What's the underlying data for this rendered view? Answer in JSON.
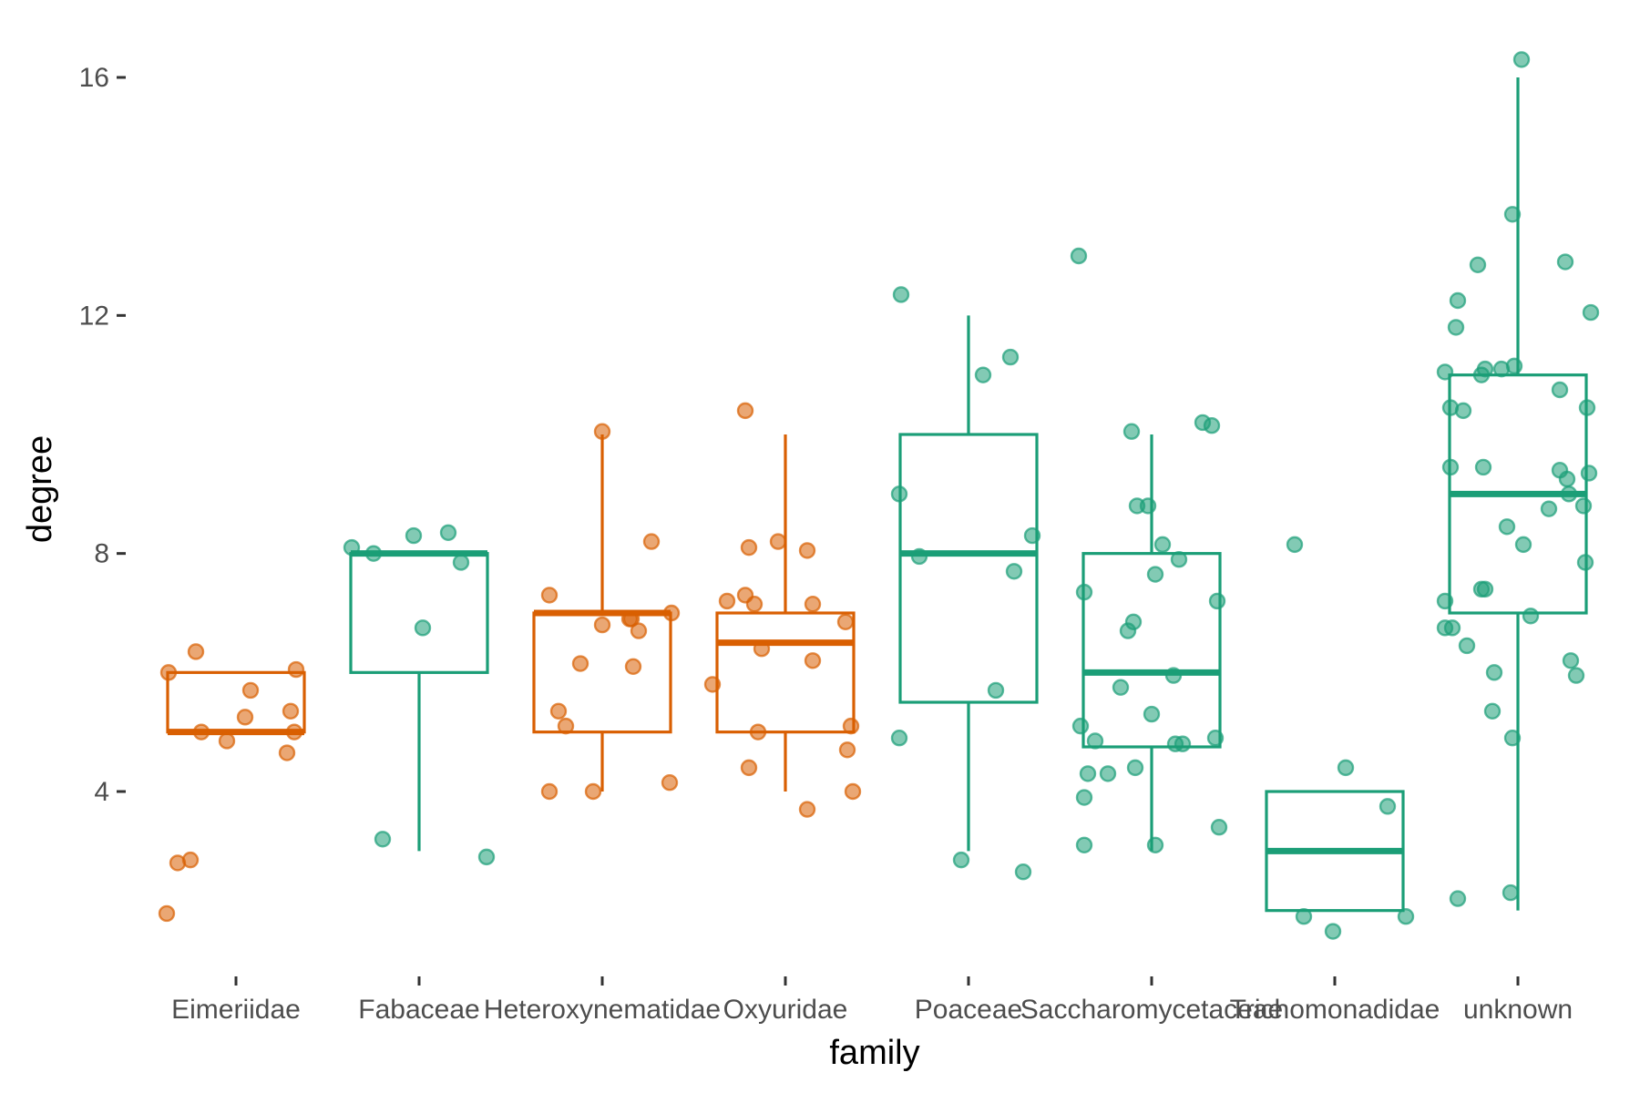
{
  "chart_data": {
    "type": "box",
    "xlabel": "family",
    "ylabel": "degree",
    "ylim": [
      1.0,
      16.5
    ],
    "yticks": [
      4,
      8,
      12,
      16
    ],
    "yticklabels": [
      "4",
      "8",
      "12",
      "16"
    ],
    "grid": false,
    "legend": "none",
    "colors": {
      "orange": "#D95F02",
      "green": "#1B9E77"
    },
    "categories": [
      "Eimeriidae",
      "Fabaceae",
      "Heteroxynematidae",
      "Oxyuridae",
      "Poaceae",
      "Saccharomycetaceae",
      "Trichomonadidae",
      "unknown"
    ],
    "boxes": [
      {
        "family": "Eimeriidae",
        "color": "orange",
        "q1": 5,
        "median": 5,
        "q3": 6,
        "whisker_low": 5,
        "whisker_high": 6,
        "points": [
          [
            -0.37,
            6.0
          ],
          [
            -0.32,
            2.8
          ],
          [
            -0.25,
            2.85
          ],
          [
            -0.22,
            6.35
          ],
          [
            -0.19,
            5.0
          ],
          [
            -0.05,
            4.85
          ],
          [
            0.05,
            5.25
          ],
          [
            0.08,
            5.7
          ],
          [
            0.28,
            4.65
          ],
          [
            0.3,
            5.35
          ],
          [
            0.32,
            5.0
          ],
          [
            0.33,
            6.05
          ],
          [
            -0.38,
            1.95
          ]
        ]
      },
      {
        "family": "Fabaceae",
        "color": "green",
        "q1": 6,
        "median": 8,
        "q3": 8,
        "whisker_low": 3,
        "whisker_high": 8,
        "points": [
          [
            -0.37,
            8.1
          ],
          [
            -0.25,
            8.0
          ],
          [
            -0.2,
            3.2
          ],
          [
            -0.03,
            8.3
          ],
          [
            0.02,
            6.75
          ],
          [
            0.16,
            8.35
          ],
          [
            0.23,
            7.85
          ],
          [
            0.37,
            2.9
          ]
        ]
      },
      {
        "family": "Heteroxynematidae",
        "color": "orange",
        "q1": 5,
        "median": 7,
        "q3": 7,
        "whisker_low": 4,
        "whisker_high": 10,
        "points": [
          [
            -0.29,
            4.0
          ],
          [
            -0.29,
            7.3
          ],
          [
            -0.24,
            5.35
          ],
          [
            -0.2,
            5.1
          ],
          [
            -0.12,
            6.15
          ],
          [
            -0.05,
            4.0
          ],
          [
            0.0,
            10.05
          ],
          [
            0.0,
            6.8
          ],
          [
            0.15,
            6.9
          ],
          [
            0.16,
            6.9
          ],
          [
            0.17,
            6.1
          ],
          [
            0.2,
            6.7
          ],
          [
            0.27,
            8.2
          ],
          [
            0.37,
            4.15
          ],
          [
            0.38,
            7.0
          ]
        ]
      },
      {
        "family": "Oxyuridae",
        "color": "orange",
        "q1": 5,
        "median": 6.5,
        "q3": 7,
        "whisker_low": 4,
        "whisker_high": 10,
        "points": [
          [
            -0.4,
            5.8
          ],
          [
            -0.32,
            7.2
          ],
          [
            -0.22,
            7.3
          ],
          [
            -0.2,
            8.1
          ],
          [
            -0.2,
            4.4
          ],
          [
            -0.17,
            7.15
          ],
          [
            -0.15,
            5.0
          ],
          [
            -0.13,
            6.4
          ],
          [
            -0.22,
            10.4
          ],
          [
            -0.04,
            8.2
          ],
          [
            0.12,
            3.7
          ],
          [
            0.12,
            8.05
          ],
          [
            0.15,
            6.2
          ],
          [
            0.15,
            7.15
          ],
          [
            0.33,
            6.85
          ],
          [
            0.34,
            4.7
          ],
          [
            0.36,
            5.1
          ],
          [
            0.37,
            4.0
          ]
        ]
      },
      {
        "family": "Poaceae",
        "color": "green",
        "q1": 5.5,
        "median": 8,
        "q3": 10,
        "whisker_low": 3,
        "whisker_high": 12,
        "points": [
          [
            -0.38,
            4.9
          ],
          [
            -0.38,
            9.0
          ],
          [
            -0.37,
            12.35
          ],
          [
            -0.27,
            7.95
          ],
          [
            -0.04,
            2.85
          ],
          [
            0.08,
            11.0
          ],
          [
            0.15,
            5.7
          ],
          [
            0.23,
            11.3
          ],
          [
            0.25,
            7.7
          ],
          [
            0.3,
            2.65
          ],
          [
            0.35,
            8.3
          ]
        ]
      },
      {
        "family": "Saccharomycetaceae",
        "color": "green",
        "q1": 4.75,
        "median": 6,
        "q3": 8,
        "whisker_low": 3,
        "whisker_high": 10,
        "points": [
          [
            -0.39,
            5.1
          ],
          [
            -0.37,
            3.1
          ],
          [
            -0.37,
            3.9
          ],
          [
            -0.37,
            7.35
          ],
          [
            -0.35,
            4.3
          ],
          [
            -0.31,
            4.85
          ],
          [
            -0.4,
            13.0
          ],
          [
            -0.24,
            4.3
          ],
          [
            -0.17,
            5.75
          ],
          [
            -0.13,
            6.7
          ],
          [
            -0.09,
            4.4
          ],
          [
            -0.1,
            6.85
          ],
          [
            -0.11,
            10.05
          ],
          [
            -0.08,
            8.8
          ],
          [
            -0.02,
            8.8
          ],
          [
            0.0,
            5.3
          ],
          [
            0.02,
            3.1
          ],
          [
            0.02,
            7.65
          ],
          [
            0.06,
            8.15
          ],
          [
            0.13,
            4.8
          ],
          [
            0.12,
            5.95
          ],
          [
            0.15,
            7.9
          ],
          [
            0.17,
            4.8
          ],
          [
            0.28,
            10.2
          ],
          [
            0.33,
            10.15
          ],
          [
            0.35,
            4.9
          ],
          [
            0.36,
            7.2
          ],
          [
            0.37,
            3.4
          ]
        ]
      },
      {
        "family": "Trichomonadidae",
        "color": "green",
        "q1": 2,
        "median": 3,
        "q3": 4,
        "whisker_low": 2,
        "whisker_high": 4,
        "points": [
          [
            -0.22,
            8.15
          ],
          [
            -0.17,
            1.9
          ],
          [
            -0.01,
            1.65
          ],
          [
            0.06,
            4.4
          ],
          [
            0.29,
            3.75
          ],
          [
            0.39,
            1.9
          ]
        ]
      },
      {
        "family": "unknown",
        "color": "green",
        "q1": 7,
        "median": 9,
        "q3": 11,
        "whisker_low": 2,
        "whisker_high": 16,
        "points": [
          [
            -0.4,
            7.2
          ],
          [
            -0.4,
            6.75
          ],
          [
            -0.4,
            11.05
          ],
          [
            -0.37,
            9.45
          ],
          [
            -0.37,
            10.45
          ],
          [
            -0.36,
            6.75
          ],
          [
            -0.34,
            11.8
          ],
          [
            -0.33,
            12.25
          ],
          [
            -0.33,
            2.2
          ],
          [
            -0.3,
            10.4
          ],
          [
            -0.28,
            6.45
          ],
          [
            -0.22,
            12.85
          ],
          [
            -0.2,
            7.4
          ],
          [
            -0.2,
            11.0
          ],
          [
            -0.19,
            9.45
          ],
          [
            -0.18,
            7.4
          ],
          [
            -0.18,
            11.1
          ],
          [
            -0.14,
            5.35
          ],
          [
            -0.13,
            6.0
          ],
          [
            -0.09,
            11.1
          ],
          [
            -0.06,
            8.45
          ],
          [
            -0.04,
            2.3
          ],
          [
            -0.03,
            4.9
          ],
          [
            -0.03,
            13.7
          ],
          [
            -0.02,
            11.15
          ],
          [
            0.03,
            8.15
          ],
          [
            0.02,
            16.3
          ],
          [
            0.07,
            6.95
          ],
          [
            0.17,
            8.75
          ],
          [
            0.23,
            10.75
          ],
          [
            0.26,
            12.9
          ],
          [
            0.23,
            9.4
          ],
          [
            0.27,
            9.25
          ],
          [
            0.28,
            9.0
          ],
          [
            0.29,
            6.2
          ],
          [
            0.32,
            5.95
          ],
          [
            0.36,
            8.8
          ],
          [
            0.37,
            7.85
          ],
          [
            0.38,
            10.45
          ],
          [
            0.39,
            9.35
          ],
          [
            0.4,
            12.05
          ]
        ]
      }
    ]
  }
}
